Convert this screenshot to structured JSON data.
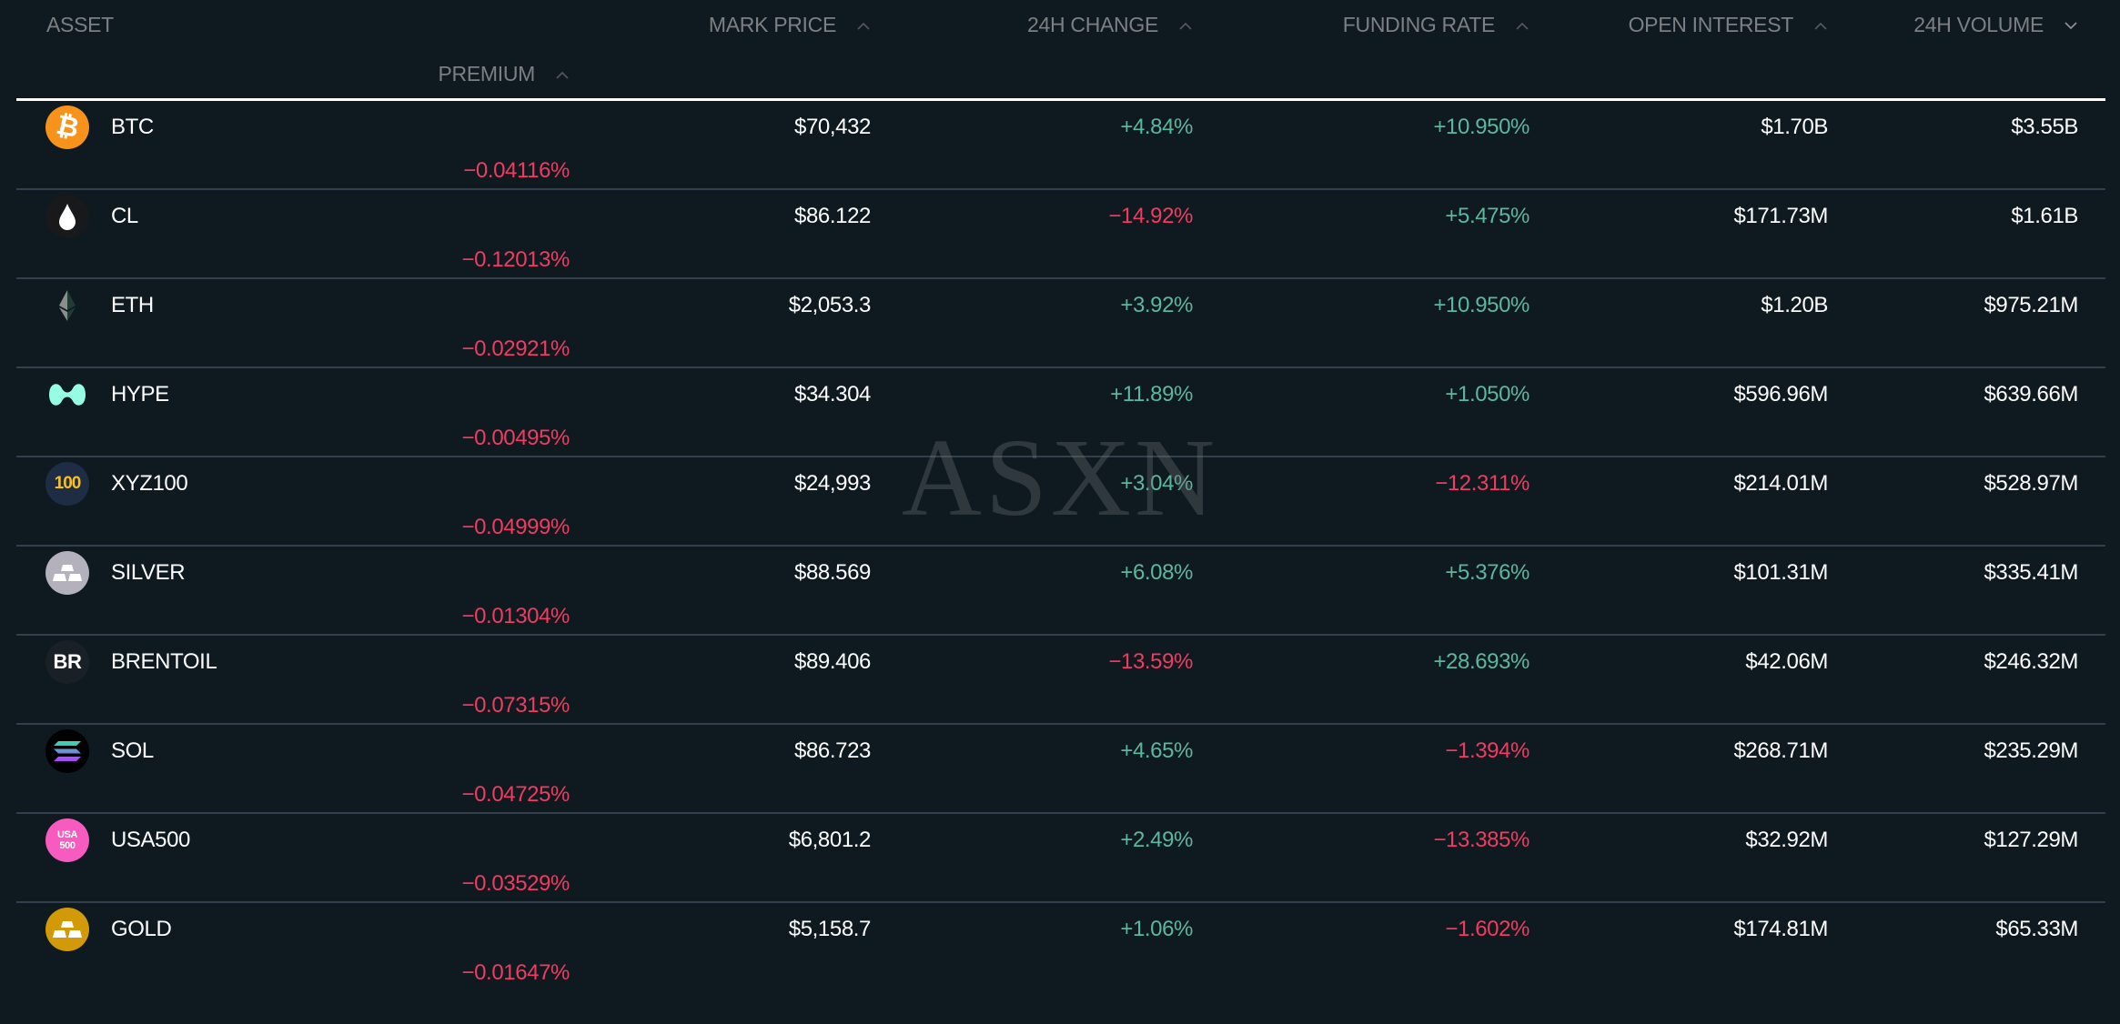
{
  "columns": [
    {
      "label": "ASSET",
      "sort": ""
    },
    {
      "label": "MARK PRICE",
      "sort": "^"
    },
    {
      "label": "24H CHANGE",
      "sort": "^"
    },
    {
      "label": "FUNDING RATE",
      "sort": "^"
    },
    {
      "label": "OPEN INTEREST",
      "sort": "^"
    },
    {
      "label": "24H VOLUME",
      "sort": "v"
    },
    {
      "label": "PREMIUM",
      "sort": "^"
    }
  ],
  "watermark": "ASXN",
  "colors": {
    "positive": "#5cb89c",
    "negative": "#f23b5f",
    "background": "#0f1920",
    "divider": "#343f4d"
  },
  "rows": [
    {
      "asset": "BTC",
      "icon": "bitcoin-icon",
      "icon_text": "₿",
      "price": "$70,432",
      "change": "+4.84%",
      "funding": "+10.950%",
      "oi": "$1.70B",
      "volume": "$3.55B",
      "premium": "−0.04116%"
    },
    {
      "asset": "CL",
      "icon": "oil-drop-icon",
      "icon_text": "",
      "price": "$86.122",
      "change": "−14.92%",
      "funding": "+5.475%",
      "oi": "$171.73M",
      "volume": "$1.61B",
      "premium": "−0.12013%"
    },
    {
      "asset": "ETH",
      "icon": "ethereum-icon",
      "icon_text": "",
      "price": "$2,053.3",
      "change": "+3.92%",
      "funding": "+10.950%",
      "oi": "$1.20B",
      "volume": "$975.21M",
      "premium": "−0.02921%"
    },
    {
      "asset": "HYPE",
      "icon": "hyperliquid-icon",
      "icon_text": "",
      "price": "$34.304",
      "change": "+11.89%",
      "funding": "+1.050%",
      "oi": "$596.96M",
      "volume": "$639.66M",
      "premium": "−0.00495%"
    },
    {
      "asset": "XYZ100",
      "icon": "xyz100-icon",
      "icon_text": "100",
      "price": "$24,993",
      "change": "+3.04%",
      "funding": "−12.311%",
      "oi": "$214.01M",
      "volume": "$528.97M",
      "premium": "−0.04999%"
    },
    {
      "asset": "SILVER",
      "icon": "silver-bars-icon",
      "icon_text": "",
      "price": "$88.569",
      "change": "+6.08%",
      "funding": "+5.376%",
      "oi": "$101.31M",
      "volume": "$335.41M",
      "premium": "−0.01304%"
    },
    {
      "asset": "BRENTOIL",
      "icon": "brentoil-icon",
      "icon_text": "BR",
      "price": "$89.406",
      "change": "−13.59%",
      "funding": "+28.693%",
      "oi": "$42.06M",
      "volume": "$246.32M",
      "premium": "−0.07315%"
    },
    {
      "asset": "SOL",
      "icon": "solana-icon",
      "icon_text": "",
      "price": "$86.723",
      "change": "+4.65%",
      "funding": "−1.394%",
      "oi": "$268.71M",
      "volume": "$235.29M",
      "premium": "−0.04725%"
    },
    {
      "asset": "USA500",
      "icon": "usa500-icon",
      "icon_text": "USA 500",
      "price": "$6,801.2",
      "change": "+2.49%",
      "funding": "−13.385%",
      "oi": "$32.92M",
      "volume": "$127.29M",
      "premium": "−0.03529%"
    },
    {
      "asset": "GOLD",
      "icon": "gold-bars-icon",
      "icon_text": "",
      "price": "$5,158.7",
      "change": "+1.06%",
      "funding": "−1.602%",
      "oi": "$174.81M",
      "volume": "$65.33M",
      "premium": "−0.01647%"
    }
  ]
}
